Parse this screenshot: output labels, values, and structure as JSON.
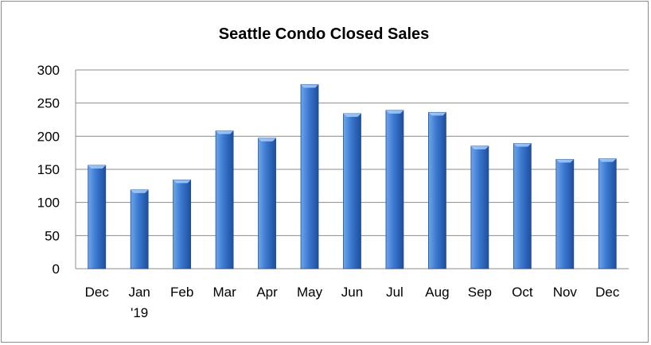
{
  "chart_data": {
    "type": "bar",
    "title": "Seattle Condo Closed Sales",
    "categories": [
      [
        "Dec"
      ],
      [
        "Jan",
        "'19"
      ],
      [
        "Feb"
      ],
      [
        "Mar"
      ],
      [
        "Apr"
      ],
      [
        "May"
      ],
      [
        "Jun"
      ],
      [
        "Jul"
      ],
      [
        "Aug"
      ],
      [
        "Sep"
      ],
      [
        "Oct"
      ],
      [
        "Nov"
      ],
      [
        "Dec"
      ]
    ],
    "values": [
      156,
      119,
      134,
      208,
      197,
      278,
      234,
      239,
      236,
      185,
      189,
      165,
      166
    ],
    "xlabel": "",
    "ylabel": "",
    "ylim": [
      0,
      300
    ],
    "yticks": [
      0,
      50,
      100,
      150,
      200,
      250,
      300
    ],
    "grid": true,
    "legend": "none",
    "colors": {
      "bar_light": "#6fa5e8",
      "bar_mid": "#3a78d0",
      "bar_dark": "#1e4f9c",
      "grid": "#8c8c8c",
      "axis": "#8c8c8c"
    }
  }
}
